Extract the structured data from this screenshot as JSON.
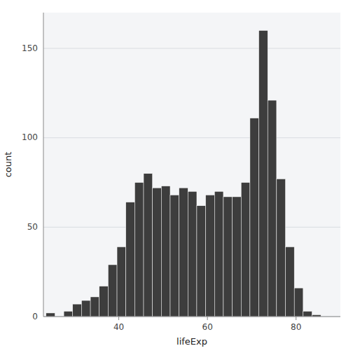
{
  "chart_data": {
    "type": "histogram",
    "xlabel": "lifeExp",
    "ylabel": "count",
    "color": "#3d3d3d",
    "grid": true,
    "xlim": [
      23,
      90
    ],
    "ylim": [
      0,
      170
    ],
    "xticks": [
      40,
      60,
      80
    ],
    "yticks": [
      0,
      50,
      100,
      150
    ],
    "bins": [
      23.599,
      25.599,
      27.599,
      29.599,
      31.599,
      33.599,
      35.599,
      37.599,
      39.599,
      41.599,
      43.599,
      45.599,
      47.599,
      49.599,
      51.599,
      53.599,
      55.599,
      57.599,
      59.599,
      61.599,
      63.599,
      65.599,
      67.599,
      69.599,
      71.599,
      73.599,
      75.599,
      77.599,
      79.599,
      81.599,
      83.599,
      85.599
    ],
    "values": [
      2,
      0,
      3,
      7,
      9,
      11,
      17,
      29,
      39,
      64,
      75,
      80,
      72,
      73,
      68,
      72,
      70,
      62,
      68,
      70,
      67,
      67,
      75,
      111,
      160,
      121,
      77,
      39,
      16,
      3,
      1
    ]
  }
}
